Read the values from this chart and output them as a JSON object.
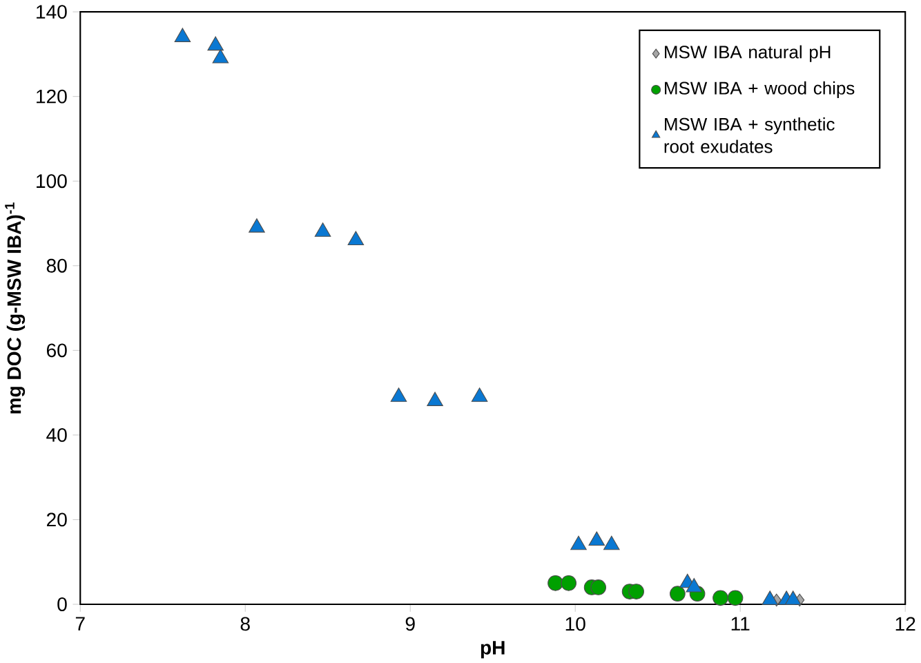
{
  "chart_data": {
    "type": "scatter",
    "xlabel": "pH",
    "ylabel": "mg DOC (g-MSW IBA)$^{-1}$",
    "xlim": [
      7,
      12
    ],
    "ylim": [
      0,
      140
    ],
    "xticks": [
      7,
      8,
      9,
      10,
      11,
      12
    ],
    "yticks": [
      0,
      20,
      40,
      60,
      80,
      100,
      120,
      140
    ],
    "grid": false,
    "legend": "top right",
    "series": [
      {
        "name": "MSW IBA natural pH",
        "color": "#a6a6a6",
        "marker": "diamond",
        "x": [
          11.22,
          11.36
        ],
        "values": [
          1,
          1
        ]
      },
      {
        "name": "MSW IBA + wood chips",
        "color": "#00a000",
        "marker": "circle",
        "x": [
          9.88,
          9.96,
          10.1,
          10.14,
          10.33,
          10.37,
          10.62,
          10.74,
          10.88,
          10.97
        ],
        "values": [
          5,
          5,
          4,
          4,
          3,
          3,
          2.5,
          2.5,
          1.5,
          1.5
        ]
      },
      {
        "name": "MSW IBA + synthetic root exudates",
        "color": "#0a78d2",
        "marker": "triangle",
        "x": [
          7.62,
          7.82,
          7.85,
          8.07,
          8.47,
          8.67,
          8.93,
          9.15,
          9.42,
          10.02,
          10.13,
          10.22,
          10.68,
          10.72,
          11.18,
          11.28,
          11.32
        ],
        "values": [
          134,
          132,
          129,
          89,
          88,
          86,
          49,
          48,
          49,
          14,
          15,
          14,
          5,
          4,
          1,
          1,
          1
        ]
      }
    ]
  }
}
